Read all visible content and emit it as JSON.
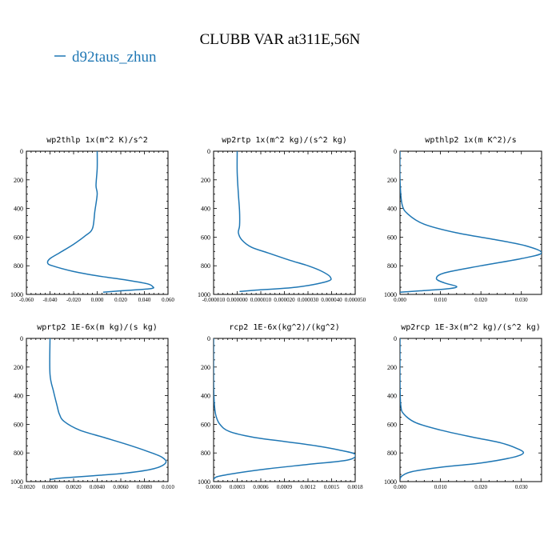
{
  "figure": {
    "title": "CLUBB VAR at311E,56N",
    "legend": {
      "label": "d92taus_zhun",
      "color": "#1f77b4",
      "placement": "top-left"
    }
  },
  "chart_data": [
    {
      "type": "line",
      "title": "wp2thlp   1x(m^2 K)/s^2",
      "xlim": [
        -0.06,
        0.06
      ],
      "ylim": [
        1000,
        0
      ],
      "xticks": [
        "-0.060",
        "-0.040",
        "-0.020",
        "0.000",
        "0.020",
        "0.040",
        "0.060"
      ],
      "xtick_values": [
        -0.06,
        -0.04,
        -0.02,
        0.0,
        0.02,
        0.04,
        0.06
      ],
      "yticks": [
        "0",
        "200",
        "400",
        "600",
        "800",
        "1000"
      ],
      "ytick_values": [
        0,
        200,
        400,
        600,
        800,
        1000
      ],
      "series": [
        {
          "color": "#1f77b4",
          "x": [
            0.0,
            0.0,
            -0.001,
            0.0,
            -0.002,
            -0.004,
            -0.01,
            -0.02,
            -0.032,
            -0.04,
            -0.042,
            -0.038,
            -0.02,
            0.0,
            0.025,
            0.042,
            0.047,
            0.045,
            0.02,
            0.005
          ],
          "y": [
            0,
            120,
            240,
            300,
            420,
            540,
            590,
            650,
            710,
            750,
            780,
            800,
            840,
            870,
            900,
            925,
            945,
            960,
            975,
            985
          ]
        }
      ]
    },
    {
      "type": "line",
      "title": "wp2rtp   1x(m^2 kg)/(s^2 kg)",
      "xlim": [
        -1e-05,
        5e-05
      ],
      "ylim": [
        1000,
        0
      ],
      "xticks": [
        "-0.000010",
        "0.000000",
        "0.000010",
        "0.000020",
        "0.000030",
        "0.000040",
        "0.000050"
      ],
      "xtick_values": [
        -1e-05,
        0.0,
        1e-05,
        2e-05,
        3e-05,
        4e-05,
        5e-05
      ],
      "yticks": [
        "0",
        "200",
        "400",
        "600",
        "800",
        "1000"
      ],
      "ytick_values": [
        0,
        200,
        400,
        600,
        800,
        1000
      ],
      "series": [
        {
          "color": "#1f77b4",
          "x": [
            0.0,
            0.0,
            5e-07,
            1e-06,
            1e-06,
            5e-07,
            2e-06,
            6e-06,
            1.3e-05,
            2.2e-05,
            3e-05,
            3.6e-05,
            3.95e-05,
            3.8e-05,
            2.5e-05,
            8e-06,
            1e-06
          ],
          "y": [
            0,
            150,
            300,
            420,
            520,
            570,
            620,
            670,
            710,
            760,
            800,
            840,
            880,
            910,
            950,
            970,
            980
          ]
        }
      ]
    },
    {
      "type": "line",
      "title": "wpthlp2   1x(m K^2)/s",
      "xlim": [
        0,
        0.035
      ],
      "ylim": [
        1000,
        0
      ],
      "xticks": [
        "0.000",
        "0.010",
        "0.020",
        "0.030"
      ],
      "xtick_values": [
        0.0,
        0.01,
        0.02,
        0.03
      ],
      "yticks": [
        "0",
        "200",
        "400",
        "600",
        "800",
        "1000"
      ],
      "ytick_values": [
        0,
        200,
        400,
        600,
        800,
        1000
      ],
      "series": [
        {
          "color": "#1f77b4",
          "x": [
            0.0,
            0.0,
            0.0005,
            0.002,
            0.006,
            0.014,
            0.024,
            0.031,
            0.035,
            0.03,
            0.02,
            0.011,
            0.009,
            0.011,
            0.014,
            0.012,
            0.005,
            0.0
          ],
          "y": [
            0,
            200,
            370,
            440,
            510,
            570,
            620,
            660,
            710,
            750,
            800,
            850,
            890,
            920,
            945,
            960,
            975,
            985
          ]
        }
      ]
    },
    {
      "type": "line",
      "title": "wprtp2   1E-6x(m kg)/(s kg)",
      "xlim": [
        -0.002,
        0.01
      ],
      "ylim": [
        1000,
        0
      ],
      "xticks": [
        "-0.0020",
        "0.0000",
        "0.0020",
        "0.0040",
        "0.0060",
        "0.0080",
        "0.010"
      ],
      "xtick_values": [
        -0.002,
        0.0,
        0.002,
        0.004,
        0.006,
        0.008,
        0.01
      ],
      "yticks": [
        "0",
        "200",
        "400",
        "600",
        "800",
        "1000"
      ],
      "ytick_values": [
        0,
        200,
        400,
        600,
        800,
        1000
      ],
      "series": [
        {
          "color": "#1f77b4",
          "x": [
            0.0,
            0.0,
            0.0003,
            0.0006,
            0.0008,
            0.0012,
            0.0025,
            0.0045,
            0.0065,
            0.0083,
            0.0095,
            0.0098,
            0.0088,
            0.0065,
            0.0035,
            0.001,
            0.0
          ],
          "y": [
            0,
            250,
            370,
            470,
            530,
            580,
            640,
            690,
            740,
            790,
            830,
            870,
            910,
            940,
            960,
            975,
            985
          ]
        }
      ]
    },
    {
      "type": "line",
      "title": "rcp2   1E-6x(kg^2)/(kg^2)",
      "xlim": [
        0,
        0.0018
      ],
      "ylim": [
        1000,
        0
      ],
      "xticks": [
        "0.0000",
        "0.0003",
        "0.0006",
        "0.0009",
        "0.0012",
        "0.0015",
        "0.0018"
      ],
      "xtick_values": [
        0.0,
        0.0003,
        0.0006,
        0.0009,
        0.0012,
        0.0015,
        0.0018
      ],
      "yticks": [
        "0",
        "200",
        "400",
        "600",
        "800",
        "1000"
      ],
      "ytick_values": [
        0,
        200,
        400,
        600,
        800,
        1000
      ],
      "series": [
        {
          "color": "#1f77b4",
          "x": [
            0.0,
            0.0,
            1e-05,
            3e-05,
            8e-05,
            0.0002,
            0.0005,
            0.0009,
            0.0013,
            0.0016,
            0.0018,
            0.0017,
            0.0012,
            0.0007,
            0.0003,
            5e-05,
            0.0
          ],
          "y": [
            0,
            300,
            460,
            540,
            600,
            650,
            690,
            720,
            750,
            780,
            810,
            850,
            880,
            910,
            940,
            965,
            985
          ]
        }
      ]
    },
    {
      "type": "line",
      "title": "wp2rcp   1E-3x(m^2 kg)/(s^2 kg)",
      "xlim": [
        0,
        0.035
      ],
      "ylim": [
        1000,
        0
      ],
      "xticks": [
        "0.000",
        "0.010",
        "0.020",
        "0.030"
      ],
      "xtick_values": [
        0.0,
        0.01,
        0.02,
        0.03
      ],
      "yticks": [
        "0",
        "200",
        "400",
        "600",
        "800",
        "1000"
      ],
      "ytick_values": [
        0,
        200,
        400,
        600,
        800,
        1000
      ],
      "series": [
        {
          "color": "#1f77b4",
          "x": [
            0.0,
            0.0,
            0.0002,
            0.001,
            0.004,
            0.01,
            0.018,
            0.025,
            0.029,
            0.0305,
            0.028,
            0.02,
            0.01,
            0.003,
            0.0005,
            0.0
          ],
          "y": [
            0,
            300,
            470,
            530,
            590,
            640,
            690,
            730,
            770,
            800,
            830,
            870,
            900,
            930,
            960,
            985
          ]
        }
      ]
    }
  ]
}
